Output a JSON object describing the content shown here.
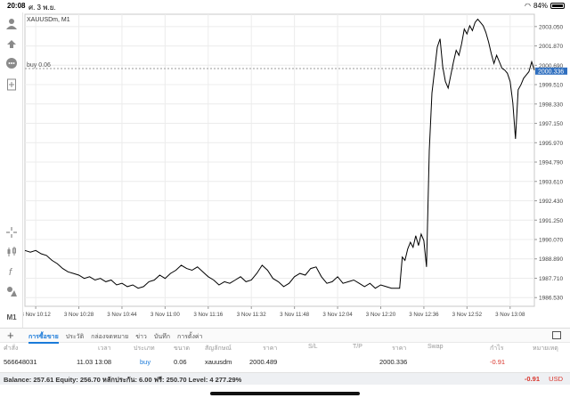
{
  "status_bar": {
    "time": "20:08",
    "date": "ศ. 3 พ.ย.",
    "battery": "84%",
    "battery_level": 0.84
  },
  "toolbar": {
    "icons": [
      "account-icon",
      "trade-icon",
      "chat-icon",
      "new-document-icon",
      "crosshair-icon",
      "candles-icon",
      "indicator-icon",
      "objects-icon"
    ],
    "timeframe": "M1"
  },
  "chart": {
    "symbol": "XAUUSDm, M1",
    "position_label": "buy 0.06",
    "current_price": "2000.336",
    "colors": {
      "line": "#000000",
      "grid": "#ececec",
      "position_line": "#9a9a9a",
      "price_tag": "#2f6fbf"
    }
  },
  "chart_data": {
    "type": "line",
    "title": "XAUUSDm, M1",
    "xlabel": "",
    "ylabel": "",
    "x_tick_labels": [
      "3 Nov 10:12",
      "3 Nov 10:28",
      "3 Nov 10:44",
      "3 Nov 11:00",
      "3 Nov 11:16",
      "3 Nov 11:32",
      "3 Nov 11:48",
      "3 Nov 12:04",
      "3 Nov 12:20",
      "3 Nov 12:36",
      "3 Nov 12:52",
      "3 Nov 13:08"
    ],
    "y_tick_labels": [
      "2003.050",
      "2001.870",
      "2000.690",
      "1999.510",
      "1998.330",
      "1997.150",
      "1995.970",
      "1994.790",
      "1993.610",
      "1992.430",
      "1991.250",
      "1990.070",
      "1988.890",
      "1987.710",
      "1986.530"
    ],
    "ylim": [
      1986.0,
      2003.8
    ],
    "xlim": [
      0,
      189
    ],
    "grid": true,
    "series": [
      {
        "values": [
          [
            0,
            1989.4
          ],
          [
            2,
            1989.3
          ],
          [
            4,
            1989.4
          ],
          [
            6,
            1989.2
          ],
          [
            8,
            1989.1
          ],
          [
            10,
            1988.8
          ],
          [
            12,
            1988.6
          ],
          [
            14,
            1988.3
          ],
          [
            16,
            1988.1
          ],
          [
            18,
            1988.0
          ],
          [
            20,
            1987.9
          ],
          [
            22,
            1987.7
          ],
          [
            24,
            1987.8
          ],
          [
            26,
            1987.6
          ],
          [
            28,
            1987.7
          ],
          [
            30,
            1987.5
          ],
          [
            32,
            1987.6
          ],
          [
            34,
            1987.3
          ],
          [
            36,
            1987.4
          ],
          [
            38,
            1987.2
          ],
          [
            40,
            1987.3
          ],
          [
            42,
            1987.1
          ],
          [
            44,
            1987.2
          ],
          [
            46,
            1987.5
          ],
          [
            48,
            1987.6
          ],
          [
            50,
            1987.9
          ],
          [
            52,
            1987.7
          ],
          [
            54,
            1988.0
          ],
          [
            56,
            1988.2
          ],
          [
            58,
            1988.5
          ],
          [
            60,
            1988.3
          ],
          [
            62,
            1988.2
          ],
          [
            64,
            1988.4
          ],
          [
            66,
            1988.1
          ],
          [
            68,
            1987.8
          ],
          [
            70,
            1987.6
          ],
          [
            72,
            1987.3
          ],
          [
            74,
            1987.5
          ],
          [
            76,
            1987.4
          ],
          [
            78,
            1987.6
          ],
          [
            80,
            1987.8
          ],
          [
            82,
            1987.5
          ],
          [
            84,
            1987.6
          ],
          [
            86,
            1988.0
          ],
          [
            88,
            1988.5
          ],
          [
            90,
            1988.2
          ],
          [
            92,
            1987.7
          ],
          [
            94,
            1987.5
          ],
          [
            96,
            1987.2
          ],
          [
            98,
            1987.4
          ],
          [
            100,
            1987.8
          ],
          [
            102,
            1988.0
          ],
          [
            104,
            1987.9
          ],
          [
            106,
            1988.3
          ],
          [
            108,
            1988.4
          ],
          [
            110,
            1987.8
          ],
          [
            112,
            1987.4
          ],
          [
            114,
            1987.5
          ],
          [
            116,
            1987.8
          ],
          [
            118,
            1987.4
          ],
          [
            120,
            1987.5
          ],
          [
            122,
            1987.6
          ],
          [
            124,
            1987.4
          ],
          [
            126,
            1987.2
          ],
          [
            128,
            1987.4
          ],
          [
            130,
            1987.1
          ],
          [
            132,
            1987.3
          ],
          [
            134,
            1987.2
          ],
          [
            136,
            1987.1
          ],
          [
            138,
            1987.1
          ],
          [
            139,
            1987.1
          ],
          [
            140,
            1989.0
          ],
          [
            141,
            1988.8
          ],
          [
            142,
            1989.5
          ],
          [
            143,
            1989.9
          ],
          [
            144,
            1989.6
          ],
          [
            145,
            1990.3
          ],
          [
            146,
            1989.7
          ],
          [
            147,
            1990.4
          ],
          [
            148,
            1990.0
          ],
          [
            149,
            1988.4
          ],
          [
            150,
            1995.5
          ],
          [
            151,
            1999.0
          ],
          [
            152,
            2000.4
          ],
          [
            153,
            2001.8
          ],
          [
            154,
            2002.3
          ],
          [
            155,
            2000.6
          ],
          [
            156,
            1999.7
          ],
          [
            157,
            1999.3
          ],
          [
            158,
            2000.1
          ],
          [
            159,
            2000.9
          ],
          [
            160,
            2001.6
          ],
          [
            161,
            2001.3
          ],
          [
            162,
            2002.0
          ],
          [
            163,
            2002.9
          ],
          [
            164,
            2002.6
          ],
          [
            165,
            2003.1
          ],
          [
            166,
            2002.8
          ],
          [
            167,
            2003.3
          ],
          [
            168,
            2003.5
          ],
          [
            169,
            2003.3
          ],
          [
            170,
            2003.1
          ],
          [
            171,
            2002.7
          ],
          [
            172,
            2002.1
          ],
          [
            173,
            2001.4
          ],
          [
            174,
            2000.8
          ],
          [
            175,
            2001.3
          ],
          [
            176,
            2000.9
          ],
          [
            177,
            2000.5
          ],
          [
            178,
            2000.4
          ],
          [
            179,
            2000.2
          ],
          [
            180,
            1999.7
          ],
          [
            181,
            1998.4
          ],
          [
            182,
            1996.2
          ],
          [
            183,
            1999.2
          ],
          [
            184,
            1999.5
          ],
          [
            185,
            1999.9
          ],
          [
            186,
            2000.1
          ],
          [
            187,
            2000.3
          ],
          [
            188,
            2000.9
          ],
          [
            189,
            2000.4
          ]
        ]
      }
    ]
  },
  "tabs": {
    "items": [
      {
        "label": "การซื้อขาย",
        "active": true
      },
      {
        "label": "ประวัติ",
        "active": false
      },
      {
        "label": "กล่องจดหมาย",
        "active": false
      },
      {
        "label": "ข่าว",
        "active": false
      },
      {
        "label": "บันทึก",
        "active": false
      },
      {
        "label": "การตั้งค่า",
        "active": false
      }
    ]
  },
  "table": {
    "headers": [
      "คำสั่ง",
      "เวลา",
      "ประเภท",
      "ขนาด",
      "สัญลักษณ์",
      "ราคา",
      "S/L",
      "T/P",
      "ราคา",
      "Swap",
      "กำไร",
      "หมายเหตุ"
    ],
    "rows": [
      [
        "566648031",
        "11.03 13:08",
        "buy",
        "0.06",
        "xauusdm",
        "2000.489",
        "",
        "",
        "2000.336",
        "",
        "-0.91",
        ""
      ]
    ]
  },
  "summary": {
    "text": "Balance: 257.61 Equity: 256.70 หลักประกัน: 6.00 ฟรี: 250.70 Level: 4 277.29%",
    "profit": "-0.91",
    "currency": "USD"
  }
}
